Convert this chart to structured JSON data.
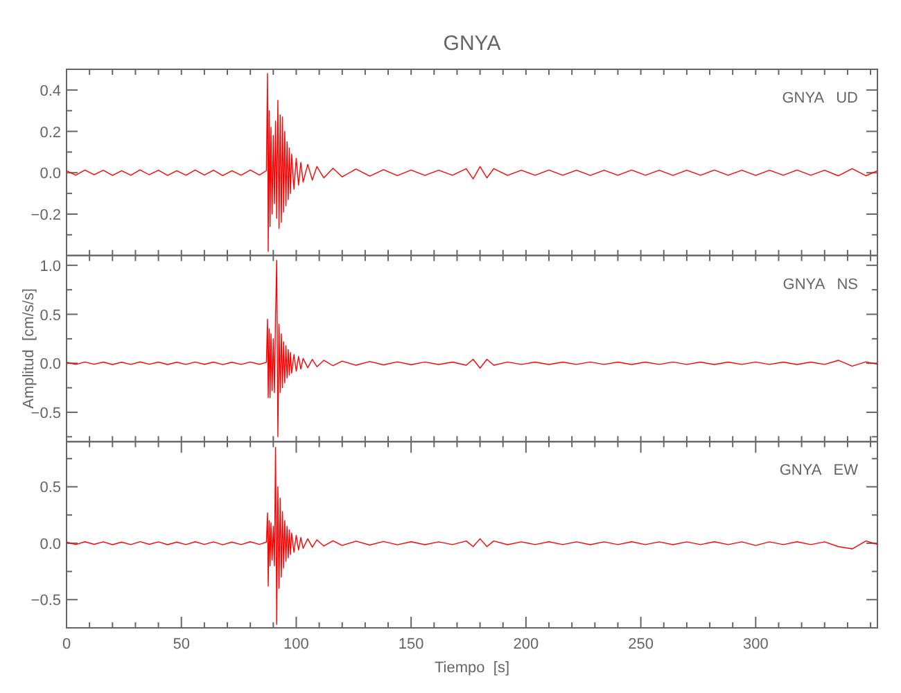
{
  "chart_data": [
    {
      "type": "line",
      "title": "GNYA",
      "annotations": [
        "GNYA   UD"
      ],
      "tick_labels": "y",
      "color": "#ff0000",
      "xlim": [
        0,
        353
      ],
      "ylim": [
        -0.4,
        0.5
      ],
      "xticks": [
        0,
        {
          "value": 10,
          "label": null
        },
        {
          "value": 20,
          "label": null
        },
        {
          "value": 30,
          "label": null
        },
        {
          "value": 40,
          "label": null
        },
        {
          "value": 50,
          "label": null
        },
        {
          "value": 60,
          "label": null
        },
        {
          "value": 70,
          "label": null
        },
        {
          "value": 80,
          "label": null
        },
        {
          "value": 90,
          "label": null
        },
        {
          "value": 100,
          "label": null
        },
        {
          "value": 110,
          "label": null
        },
        {
          "value": 120,
          "label": null
        },
        {
          "value": 130,
          "label": null
        },
        {
          "value": 140,
          "label": null
        },
        {
          "value": 150,
          "label": null
        },
        {
          "value": 160,
          "label": null
        },
        {
          "value": 170,
          "label": null
        },
        {
          "value": 180,
          "label": null
        },
        {
          "value": 190,
          "label": null
        },
        {
          "value": 200,
          "label": null
        },
        {
          "value": 210,
          "label": null
        },
        {
          "value": 220,
          "label": null
        },
        {
          "value": 230,
          "label": null
        },
        {
          "value": 240,
          "label": null
        },
        {
          "value": 250,
          "label": null
        },
        {
          "value": 260,
          "label": null
        },
        {
          "value": 270,
          "label": null
        },
        {
          "value": 280,
          "label": null
        },
        {
          "value": 290,
          "label": null
        },
        {
          "value": 300,
          "label": null
        },
        {
          "value": 310,
          "label": null
        },
        {
          "value": 320,
          "label": null
        },
        {
          "value": 330,
          "label": null
        },
        {
          "value": 340,
          "label": null
        },
        {
          "value": 350,
          "label": null
        }
      ],
      "yticks": [
        {
          "value": -0.3,
          "label": null
        },
        {
          "value": -0.2,
          "label": "−0.2"
        },
        {
          "value": -0.1,
          "label": null
        },
        {
          "value": 0,
          "label": "0.0"
        },
        {
          "value": 0.1,
          "label": null
        },
        {
          "value": 0.2,
          "label": "0.2"
        },
        {
          "value": 0.3,
          "label": null
        },
        {
          "value": 0.4,
          "label": "0.4"
        }
      ],
      "x": [
        0,
        4,
        8,
        12,
        16,
        20,
        24,
        28,
        32,
        36,
        40,
        44,
        48,
        52,
        56,
        60,
        64,
        68,
        72,
        76,
        80,
        84,
        87,
        87.5,
        87.8,
        88.2,
        88.6,
        89,
        89.5,
        90,
        90.5,
        91,
        91.5,
        92,
        92.5,
        93,
        93.5,
        94,
        94.5,
        95,
        95.5,
        96,
        96.5,
        97,
        97.5,
        98,
        99,
        100,
        101,
        102,
        103,
        105,
        107,
        109,
        112,
        116,
        120,
        126,
        132,
        138,
        144,
        150,
        156,
        162,
        168,
        174,
        177,
        180,
        183,
        186,
        192,
        198,
        204,
        210,
        216,
        222,
        228,
        234,
        240,
        246,
        252,
        258,
        264,
        270,
        276,
        282,
        288,
        294,
        300,
        306,
        312,
        318,
        324,
        330,
        336,
        342,
        348,
        353
      ],
      "values": [
        0.01,
        -0.012,
        0.013,
        -0.01,
        0.012,
        -0.013,
        0.01,
        -0.012,
        0.014,
        -0.01,
        0.012,
        -0.013,
        0.01,
        -0.012,
        0.013,
        -0.011,
        0.012,
        -0.014,
        0.01,
        -0.012,
        0.013,
        -0.011,
        0.01,
        0.48,
        -0.38,
        0.3,
        -0.26,
        0.22,
        -0.2,
        0.18,
        -0.15,
        0.25,
        -0.22,
        0.35,
        -0.27,
        0.28,
        -0.24,
        0.27,
        -0.19,
        0.2,
        -0.16,
        0.15,
        -0.13,
        0.12,
        -0.1,
        0.09,
        -0.08,
        0.07,
        -0.06,
        0.05,
        -0.045,
        0.04,
        -0.035,
        0.03,
        -0.025,
        0.022,
        -0.02,
        0.018,
        -0.016,
        0.015,
        -0.014,
        0.013,
        -0.013,
        0.012,
        -0.012,
        0.02,
        -0.03,
        0.03,
        -0.025,
        0.02,
        -0.013,
        0.012,
        -0.012,
        0.013,
        -0.012,
        0.012,
        -0.013,
        0.012,
        -0.012,
        0.013,
        -0.012,
        0.012,
        -0.013,
        0.012,
        -0.012,
        0.013,
        -0.012,
        0.012,
        -0.013,
        0.012,
        -0.012,
        0.013,
        -0.012,
        0.012,
        -0.015,
        0.02,
        -0.015,
        0.01
      ]
    },
    {
      "type": "line",
      "ylabel": "Amplitud  [cm/s/s]",
      "annotations": [
        "GNYA   NS"
      ],
      "tick_labels": "y",
      "color": "#ff0000",
      "xlim": [
        0,
        353
      ],
      "ylim": [
        -0.8,
        1.1
      ],
      "xticks": [
        0,
        {
          "value": 10,
          "label": null
        },
        {
          "value": 20,
          "label": null
        },
        {
          "value": 30,
          "label": null
        },
        {
          "value": 40,
          "label": null
        },
        {
          "value": 50,
          "label": null
        },
        {
          "value": 60,
          "label": null
        },
        {
          "value": 70,
          "label": null
        },
        {
          "value": 80,
          "label": null
        },
        {
          "value": 90,
          "label": null
        },
        {
          "value": 100,
          "label": null
        },
        {
          "value": 110,
          "label": null
        },
        {
          "value": 120,
          "label": null
        },
        {
          "value": 130,
          "label": null
        },
        {
          "value": 140,
          "label": null
        },
        {
          "value": 150,
          "label": null
        },
        {
          "value": 160,
          "label": null
        },
        {
          "value": 170,
          "label": null
        },
        {
          "value": 180,
          "label": null
        },
        {
          "value": 190,
          "label": null
        },
        {
          "value": 200,
          "label": null
        },
        {
          "value": 210,
          "label": null
        },
        {
          "value": 220,
          "label": null
        },
        {
          "value": 230,
          "label": null
        },
        {
          "value": 240,
          "label": null
        },
        {
          "value": 250,
          "label": null
        },
        {
          "value": 260,
          "label": null
        },
        {
          "value": 270,
          "label": null
        },
        {
          "value": 280,
          "label": null
        },
        {
          "value": 290,
          "label": null
        },
        {
          "value": 300,
          "label": null
        },
        {
          "value": 310,
          "label": null
        },
        {
          "value": 320,
          "label": null
        },
        {
          "value": 330,
          "label": null
        },
        {
          "value": 340,
          "label": null
        },
        {
          "value": 350,
          "label": null
        }
      ],
      "yticks": [
        {
          "value": -0.75,
          "label": null
        },
        {
          "value": -0.5,
          "label": "−0.5"
        },
        {
          "value": -0.25,
          "label": null
        },
        {
          "value": 0,
          "label": "0.0"
        },
        {
          "value": 0.25,
          "label": null
        },
        {
          "value": 0.5,
          "label": "0.5"
        },
        {
          "value": 0.75,
          "label": null
        },
        {
          "value": 1,
          "label": "1.0"
        }
      ],
      "x": [
        0,
        4,
        8,
        12,
        16,
        20,
        24,
        28,
        32,
        36,
        40,
        44,
        48,
        52,
        56,
        60,
        64,
        68,
        72,
        76,
        80,
        84,
        87,
        87.5,
        87.8,
        88.2,
        88.6,
        89,
        89.5,
        90,
        90.5,
        91,
        91.5,
        92,
        92.5,
        93,
        93.5,
        94,
        94.5,
        95,
        95.5,
        96,
        96.5,
        97,
        97.5,
        98,
        99,
        100,
        101,
        102,
        103,
        105,
        107,
        109,
        112,
        116,
        120,
        126,
        132,
        138,
        144,
        150,
        156,
        162,
        168,
        174,
        177,
        180,
        183,
        186,
        192,
        198,
        204,
        210,
        216,
        222,
        228,
        234,
        240,
        246,
        252,
        258,
        264,
        270,
        276,
        282,
        288,
        294,
        300,
        306,
        312,
        318,
        324,
        330,
        336,
        342,
        348,
        353
      ],
      "values": [
        0.01,
        -0.012,
        0.013,
        -0.01,
        0.012,
        -0.013,
        0.01,
        -0.012,
        0.014,
        -0.01,
        0.012,
        -0.013,
        0.01,
        -0.012,
        0.013,
        -0.011,
        0.012,
        -0.014,
        0.01,
        -0.012,
        0.013,
        -0.011,
        0.01,
        0.45,
        -0.35,
        0.35,
        -0.35,
        0.3,
        -0.28,
        0.25,
        -0.3,
        0.5,
        1.05,
        -0.75,
        0.4,
        -0.3,
        0.3,
        -0.25,
        0.22,
        -0.2,
        0.18,
        -0.15,
        0.14,
        -0.12,
        0.11,
        -0.1,
        0.09,
        -0.08,
        0.07,
        -0.06,
        0.05,
        -0.045,
        0.04,
        -0.035,
        0.03,
        -0.025,
        0.022,
        -0.02,
        0.018,
        -0.016,
        0.015,
        -0.014,
        0.013,
        -0.013,
        0.012,
        -0.02,
        0.04,
        -0.05,
        0.04,
        -0.02,
        0.013,
        -0.012,
        0.012,
        -0.013,
        0.012,
        -0.012,
        0.013,
        -0.012,
        0.012,
        -0.013,
        0.012,
        -0.012,
        0.013,
        -0.012,
        0.012,
        -0.013,
        0.012,
        -0.012,
        0.013,
        -0.012,
        0.012,
        -0.013,
        0.012,
        -0.012,
        0.03,
        -0.03,
        0.015,
        -0.01
      ]
    },
    {
      "type": "line",
      "xlabel": "Tiempo  [s]",
      "annotations": [
        "GNYA   EW"
      ],
      "color": "#ff0000",
      "xlim": [
        0,
        353
      ],
      "ylim": [
        -0.75,
        0.9
      ],
      "xticks": [
        0,
        {
          "value": 10,
          "label": null
        },
        {
          "value": 20,
          "label": null
        },
        {
          "value": 30,
          "label": null
        },
        {
          "value": 40,
          "label": null
        },
        50,
        {
          "value": 60,
          "label": null
        },
        {
          "value": 70,
          "label": null
        },
        {
          "value": 80,
          "label": null
        },
        {
          "value": 90,
          "label": null
        },
        100,
        {
          "value": 110,
          "label": null
        },
        {
          "value": 120,
          "label": null
        },
        {
          "value": 130,
          "label": null
        },
        {
          "value": 140,
          "label": null
        },
        150,
        {
          "value": 160,
          "label": null
        },
        {
          "value": 170,
          "label": null
        },
        {
          "value": 180,
          "label": null
        },
        {
          "value": 190,
          "label": null
        },
        200,
        {
          "value": 210,
          "label": null
        },
        {
          "value": 220,
          "label": null
        },
        {
          "value": 230,
          "label": null
        },
        {
          "value": 240,
          "label": null
        },
        250,
        {
          "value": 260,
          "label": null
        },
        {
          "value": 270,
          "label": null
        },
        {
          "value": 280,
          "label": null
        },
        {
          "value": 290,
          "label": null
        },
        300,
        {
          "value": 310,
          "label": null
        },
        {
          "value": 320,
          "label": null
        },
        {
          "value": 330,
          "label": null
        },
        {
          "value": 340,
          "label": null
        },
        {
          "value": 350,
          "label": null
        }
      ],
      "yticks": [
        {
          "value": -0.5,
          "label": "−0.5"
        },
        {
          "value": -0.25,
          "label": null
        },
        {
          "value": 0,
          "label": "0.0"
        },
        {
          "value": 0.25,
          "label": null
        },
        {
          "value": 0.5,
          "label": "0.5"
        },
        {
          "value": 0.75,
          "label": null
        }
      ],
      "x": [
        0,
        4,
        8,
        12,
        16,
        20,
        24,
        28,
        32,
        36,
        40,
        44,
        48,
        52,
        56,
        60,
        64,
        68,
        72,
        76,
        80,
        84,
        87,
        87.5,
        87.8,
        88.2,
        88.6,
        89,
        89.5,
        90,
        90.5,
        91,
        91.5,
        92,
        92.5,
        93,
        93.5,
        94,
        94.5,
        95,
        95.5,
        96,
        96.5,
        97,
        97.5,
        98,
        99,
        100,
        101,
        102,
        103,
        105,
        107,
        109,
        112,
        116,
        120,
        126,
        132,
        138,
        144,
        150,
        156,
        162,
        168,
        174,
        177,
        180,
        183,
        186,
        192,
        198,
        204,
        210,
        216,
        222,
        228,
        234,
        240,
        246,
        252,
        258,
        264,
        270,
        276,
        282,
        288,
        294,
        300,
        306,
        312,
        318,
        324,
        330,
        336,
        342,
        348,
        353
      ],
      "values": [
        0.01,
        -0.012,
        0.013,
        -0.01,
        0.012,
        -0.013,
        0.01,
        -0.012,
        0.014,
        -0.01,
        0.012,
        -0.013,
        0.01,
        -0.012,
        0.013,
        -0.011,
        0.012,
        -0.014,
        0.01,
        -0.012,
        0.013,
        -0.011,
        0.01,
        0.27,
        -0.38,
        0.2,
        -0.2,
        0.18,
        -0.15,
        0.15,
        -0.2,
        0.85,
        -0.72,
        0.5,
        -0.4,
        0.4,
        -0.3,
        0.28,
        -0.22,
        0.2,
        -0.16,
        0.15,
        -0.13,
        0.12,
        -0.1,
        0.09,
        -0.08,
        0.07,
        -0.06,
        0.05,
        -0.045,
        0.04,
        -0.035,
        0.03,
        -0.025,
        0.022,
        -0.02,
        0.018,
        -0.016,
        0.015,
        -0.014,
        0.013,
        -0.013,
        0.012,
        -0.012,
        0.02,
        -0.03,
        0.04,
        -0.03,
        0.02,
        -0.013,
        0.012,
        -0.012,
        0.013,
        -0.012,
        0.012,
        -0.013,
        0.012,
        -0.012,
        0.013,
        -0.012,
        0.012,
        -0.013,
        0.012,
        -0.012,
        0.013,
        -0.012,
        0.012,
        -0.02,
        0.012,
        -0.012,
        0.013,
        -0.012,
        0.012,
        -0.03,
        -0.05,
        0.02,
        -0.01
      ]
    }
  ]
}
